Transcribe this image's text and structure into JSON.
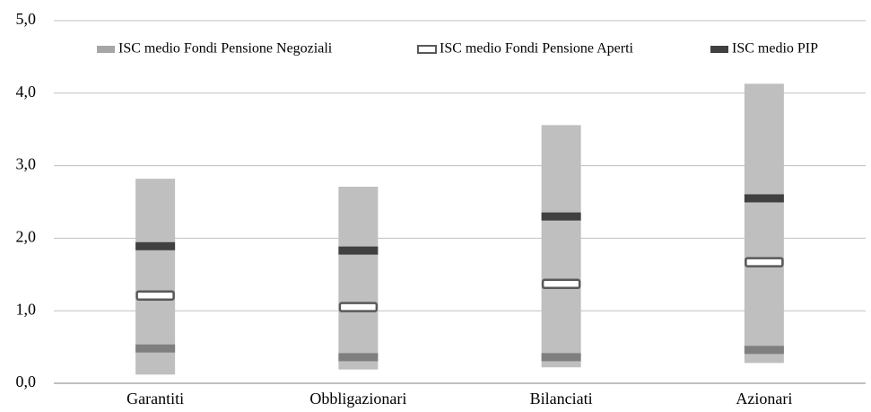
{
  "chart_data": {
    "type": "range",
    "categories": [
      "Garantiti",
      "Obbligazionari",
      "Bilanciati",
      "Azionari"
    ],
    "range": {
      "color": "#bfbfbf",
      "low": [
        0.12,
        0.19,
        0.22,
        0.28
      ],
      "high": [
        2.82,
        2.71,
        3.56,
        4.13
      ]
    },
    "series": [
      {
        "name": "ISC medio Fondi Pensione Negoziali",
        "color": "#7f7f7f",
        "values": [
          0.48,
          0.36,
          0.36,
          0.46
        ]
      },
      {
        "name": "ISC medio Fondi Pensione Aperti",
        "color": "#ffffff",
        "values": [
          1.21,
          1.05,
          1.37,
          1.67
        ]
      },
      {
        "name": "ISC medio PIP",
        "color": "#404040",
        "values": [
          1.89,
          1.83,
          2.3,
          2.55
        ]
      }
    ],
    "ylim": [
      0,
      5
    ],
    "yticks": [
      {
        "value": 0,
        "label": "0,0"
      },
      {
        "value": 1,
        "label": "1,0"
      },
      {
        "value": 2,
        "label": "2,0"
      },
      {
        "value": 3,
        "label": "3,0"
      },
      {
        "value": 4,
        "label": "4,0"
      },
      {
        "value": 5,
        "label": "5,0"
      }
    ],
    "grid": true,
    "legend": "top"
  }
}
